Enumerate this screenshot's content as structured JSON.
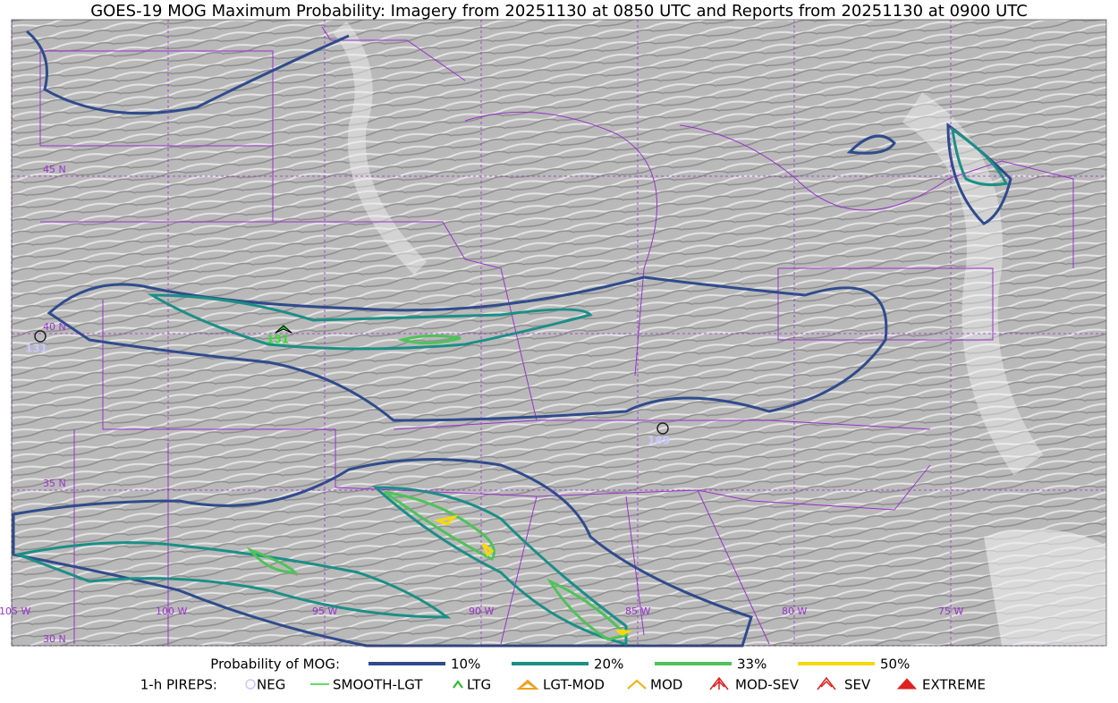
{
  "title": "GOES-19 MOG Maximum Probability: Imagery from 20251130 at 0850 UTC and Reports from 20251130 at 0900 UTC",
  "map": {
    "latitude_labels": [
      "45 N",
      "40 N",
      "35 N",
      "30 N"
    ],
    "longitude_labels": [
      "105 W",
      "100 W",
      "95 W",
      "90 W",
      "85 W",
      "80 W",
      "75 W"
    ],
    "reports": [
      {
        "label": "131"
      },
      {
        "label": "151"
      },
      {
        "label": "189"
      }
    ]
  },
  "legend": {
    "probability_title": "Probability of MOG:",
    "probability_levels": [
      {
        "label": "10%",
        "color": "#2f4b8c"
      },
      {
        "label": "20%",
        "color": "#1b8f86"
      },
      {
        "label": "33%",
        "color": "#4fc25a"
      },
      {
        "label": "50%",
        "color": "#f5d90a"
      }
    ],
    "pireps_title": "1-h PIREPS:",
    "pirep_types": [
      {
        "label": "NEG",
        "color": "#c8c8ff"
      },
      {
        "label": "SMOOTH-LGT",
        "color": "#33cc33"
      },
      {
        "label": "LTG",
        "color": "#22bb22"
      },
      {
        "label": "LGT-MOD",
        "color": "#f0a020"
      },
      {
        "label": "MOD",
        "color": "#f0b000"
      },
      {
        "label": "MOD-SEV",
        "color": "#e02020"
      },
      {
        "label": "SEV",
        "color": "#e02020"
      },
      {
        "label": "EXTREME",
        "color": "#e02020"
      }
    ]
  }
}
